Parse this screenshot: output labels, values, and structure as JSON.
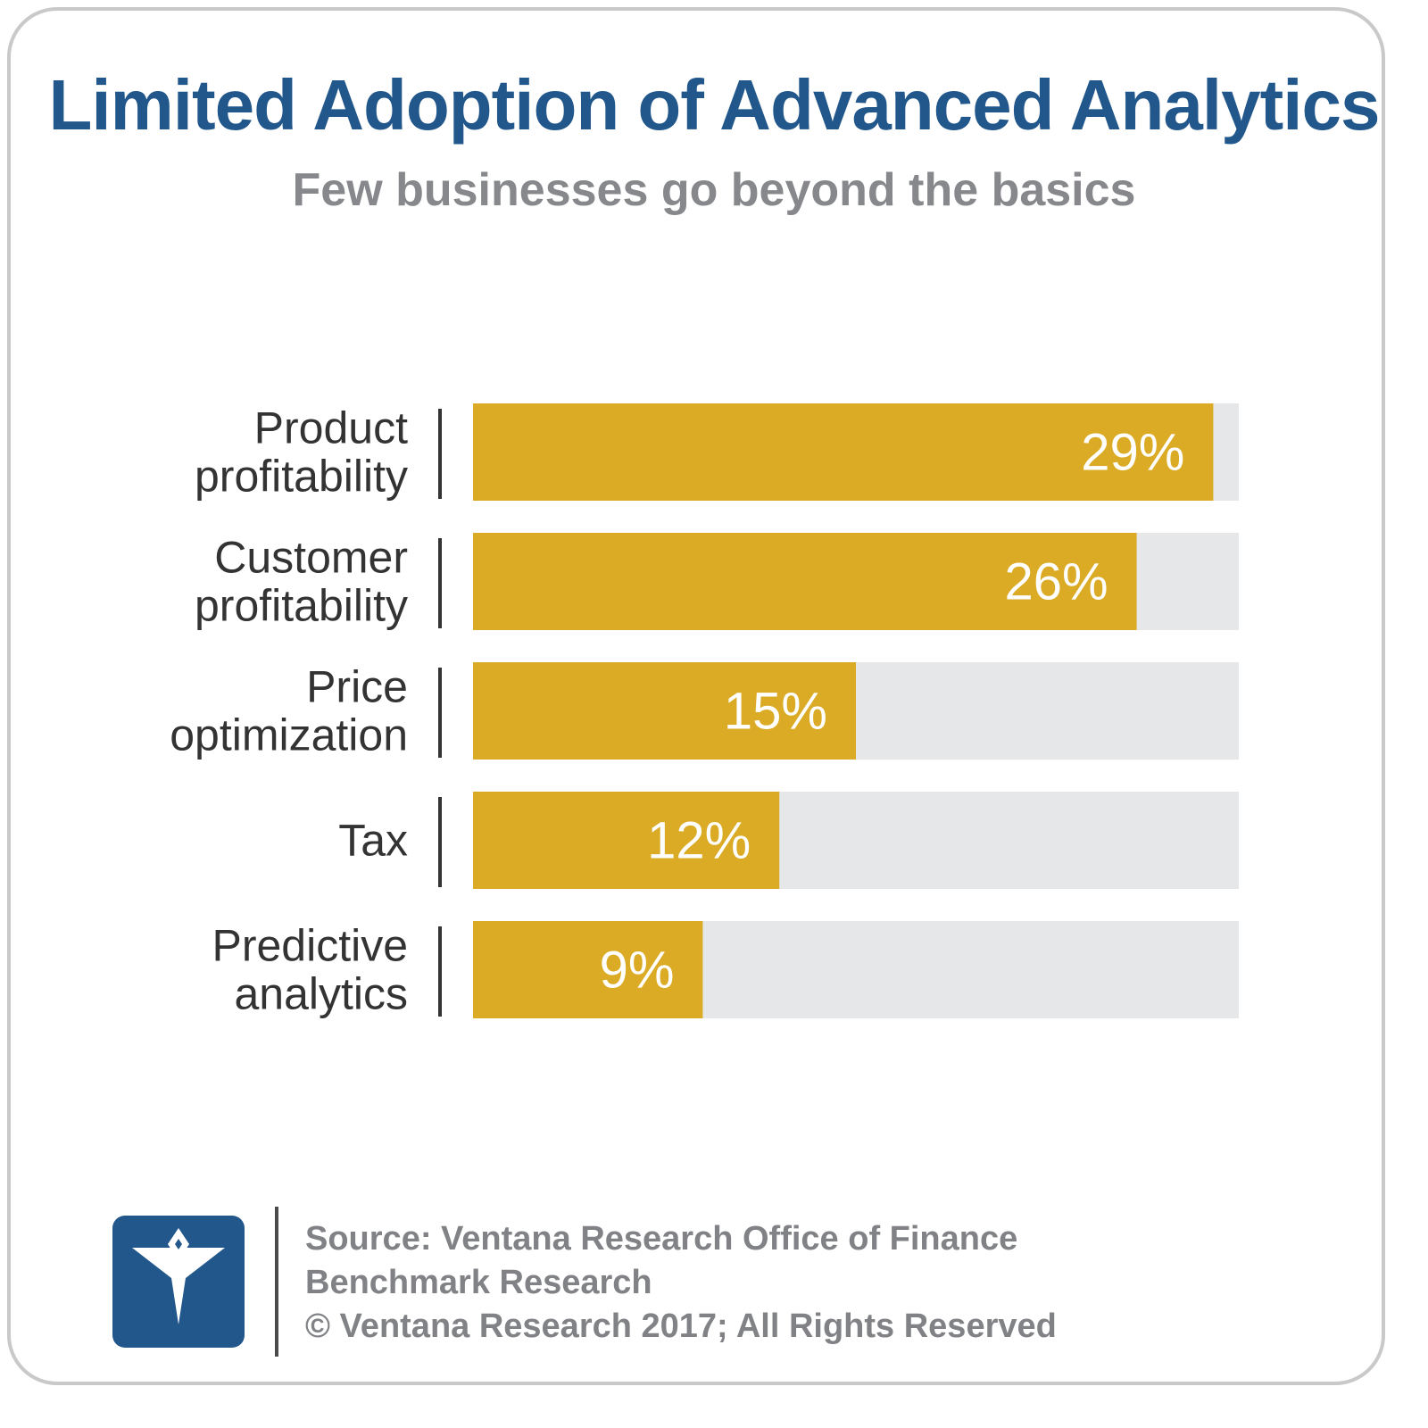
{
  "header": {
    "title": "Limited Adoption of Advanced Analytics",
    "subtitle": "Few businesses go beyond the basics"
  },
  "chart_data": {
    "type": "bar",
    "orientation": "horizontal",
    "title": "Limited Adoption of Advanced Analytics",
    "subtitle": "Few businesses go beyond the basics",
    "categories": [
      [
        "Product",
        "profitability"
      ],
      [
        "Customer",
        "profitability"
      ],
      [
        "Price",
        "optimization"
      ],
      [
        "Tax"
      ],
      [
        "Predictive",
        "analytics"
      ]
    ],
    "values": [
      29,
      26,
      15,
      12,
      9
    ],
    "data_labels": [
      "29%",
      "26%",
      "15%",
      "12%",
      "9%"
    ],
    "xlim": [
      0,
      30
    ],
    "grid": false,
    "legend": "none",
    "colors": {
      "bar": "#dbab26",
      "track": "#e6e7e8",
      "label_text": "#333333",
      "value_text": "#ffffff",
      "separator": "#333333"
    }
  },
  "footer": {
    "source_lines": [
      "Source: Ventana Research Office of Finance",
      "Benchmark Research",
      "© Ventana Research 2017; All Rights Reserved"
    ],
    "logo_icon": "ventana-v-logo-icon"
  },
  "colors": {
    "title": "#22578c",
    "subtitle": "#86888b",
    "frame": "#c9c9c9",
    "logo_bg": "#22578c",
    "source_text": "#808285"
  }
}
